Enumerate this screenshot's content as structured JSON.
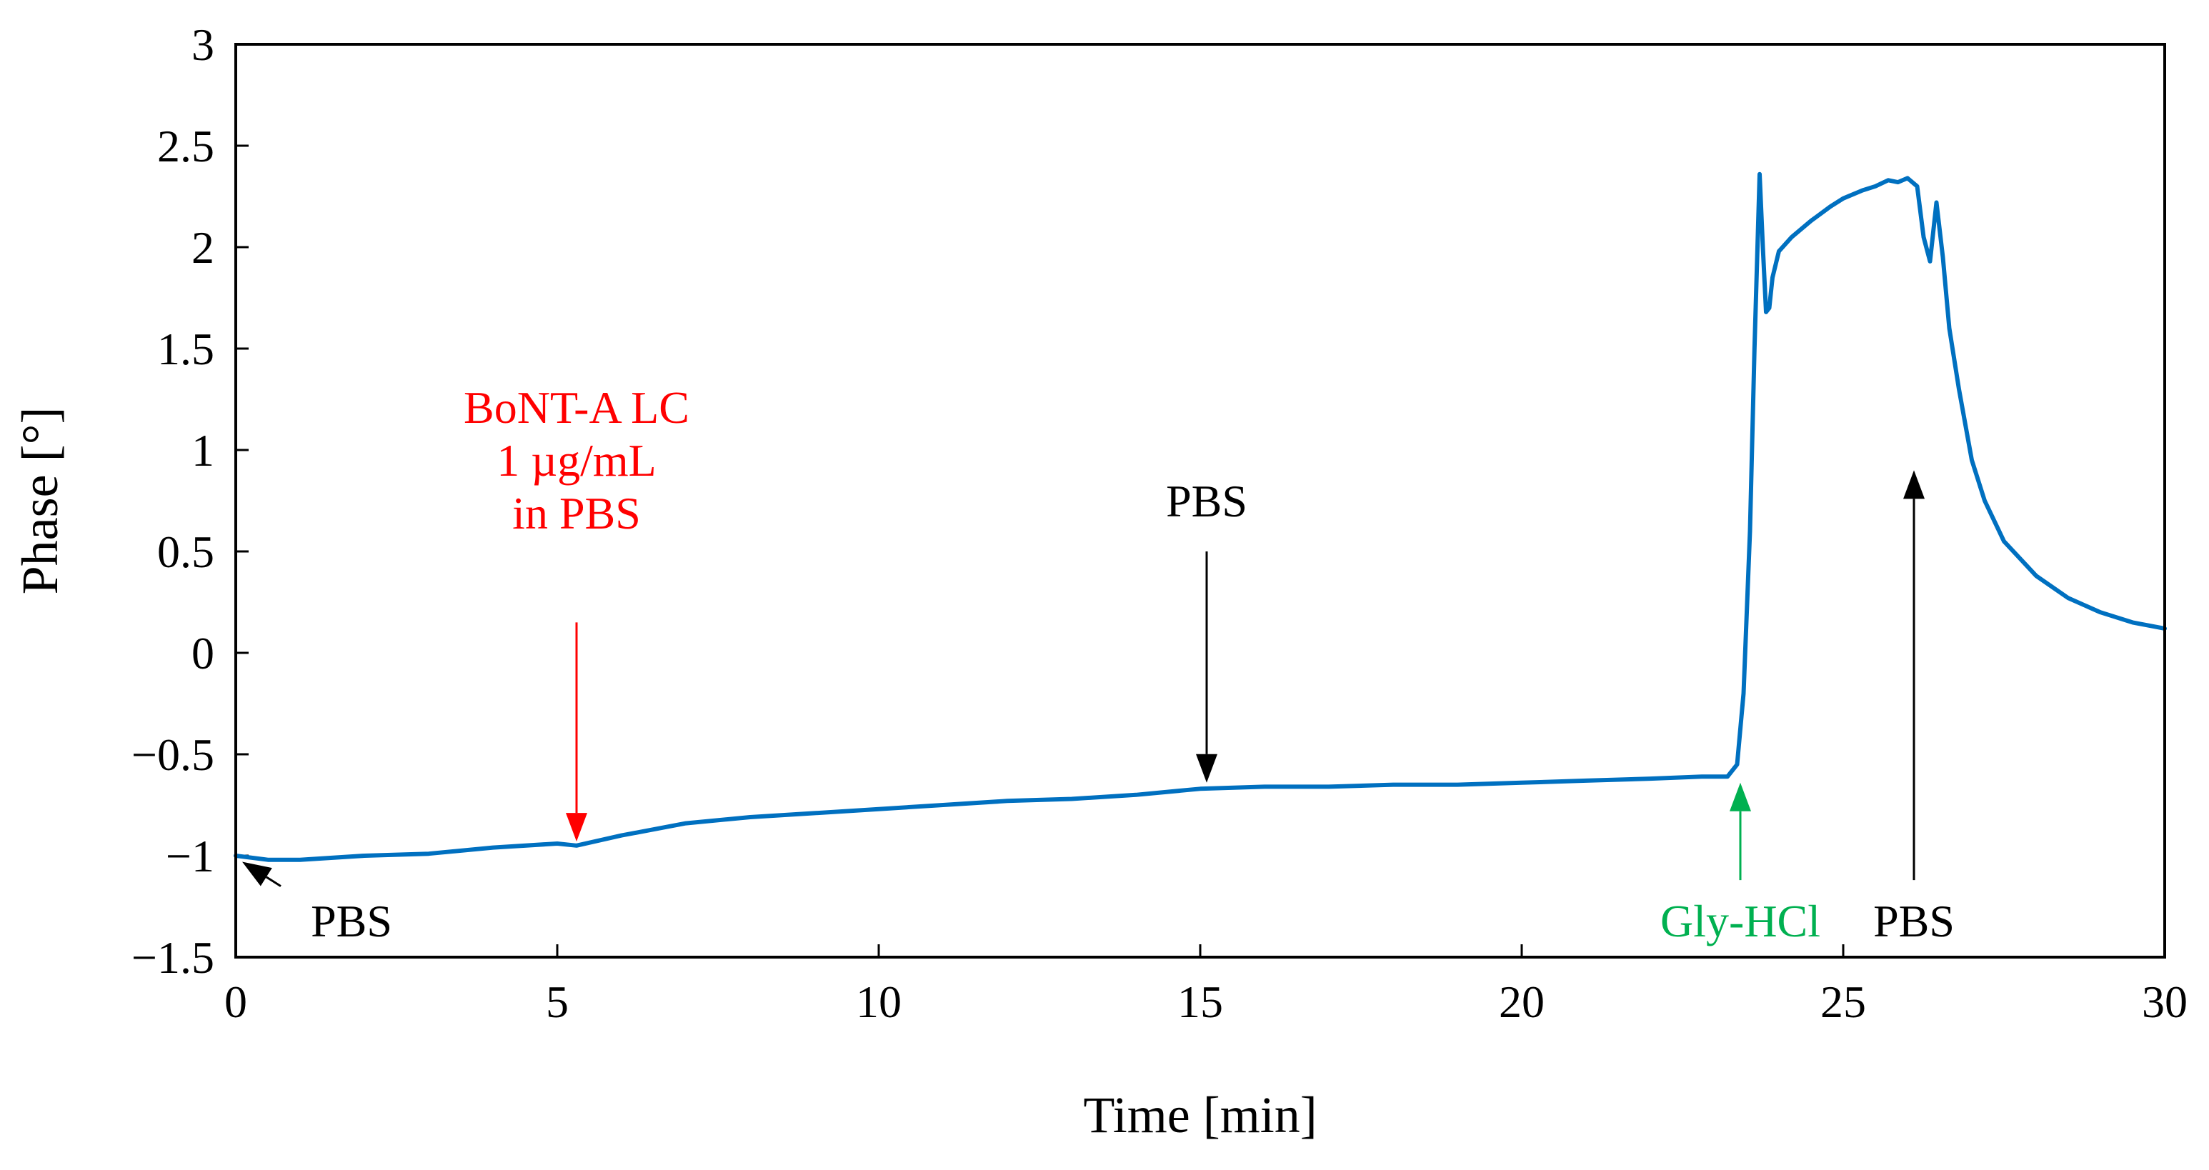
{
  "chart_data": {
    "type": "line",
    "title": "",
    "xlabel": "Time [min]",
    "ylabel": "Phase [°]",
    "xlim": [
      0,
      30
    ],
    "ylim": [
      -1.5,
      3
    ],
    "xticks": [
      0,
      5,
      10,
      15,
      20,
      25,
      30
    ],
    "yticks": [
      -1.5,
      -1,
      -0.5,
      0,
      0.5,
      1,
      1.5,
      2,
      2.5,
      3
    ],
    "xtick_labels": [
      "0",
      "5",
      "10",
      "15",
      "20",
      "25",
      "30"
    ],
    "ytick_labels": [
      "−1.5",
      "−1",
      "−0.5",
      "0",
      "0.5",
      "1",
      "1.5",
      "2",
      "2.5",
      "3"
    ],
    "grid": false,
    "series": [
      {
        "name": "Phase",
        "color": "#0070C0",
        "x": [
          0,
          0.5,
          1,
          2,
          3,
          4,
          5,
          5.3,
          6,
          7,
          8,
          9,
          10,
          11,
          12,
          13,
          14,
          15,
          16,
          17,
          18,
          19,
          20,
          21,
          22,
          22.8,
          23.2,
          23.35,
          23.45,
          23.55,
          23.62,
          23.7,
          23.75,
          23.8,
          23.85,
          23.9,
          24.0,
          24.2,
          24.5,
          24.8,
          25.0,
          25.3,
          25.5,
          25.7,
          25.85,
          26.0,
          26.15,
          26.25,
          26.35,
          26.45,
          26.55,
          26.65,
          26.8,
          27.0,
          27.2,
          27.5,
          28.0,
          28.5,
          29.0,
          29.5,
          30.0
        ],
        "y": [
          -1.0,
          -1.02,
          -1.02,
          -1.0,
          -0.99,
          -0.96,
          -0.94,
          -0.95,
          -0.9,
          -0.84,
          -0.81,
          -0.79,
          -0.77,
          -0.75,
          -0.73,
          -0.72,
          -0.7,
          -0.67,
          -0.66,
          -0.66,
          -0.65,
          -0.65,
          -0.64,
          -0.63,
          -0.62,
          -0.61,
          -0.61,
          -0.55,
          -0.2,
          0.6,
          1.5,
          2.36,
          2.0,
          1.68,
          1.7,
          1.85,
          1.98,
          2.05,
          2.13,
          2.2,
          2.24,
          2.28,
          2.3,
          2.33,
          2.32,
          2.34,
          2.3,
          2.05,
          1.93,
          2.22,
          1.95,
          1.6,
          1.3,
          0.95,
          0.75,
          0.55,
          0.38,
          0.27,
          0.2,
          0.15,
          0.12
        ]
      }
    ],
    "annotations": [
      {
        "id": "pbs-start",
        "lines": [
          "PBS"
        ],
        "color": "#000000",
        "arrow_from": [
          0.7,
          -1.15
        ],
        "arrow_to": [
          0.1,
          -1.03
        ],
        "text_at": [
          1.8,
          -1.32
        ]
      },
      {
        "id": "bont",
        "lines": [
          "BoNT-A LC",
          "1 µg/mL",
          "in PBS"
        ],
        "color": "#FF0000",
        "arrow_from": [
          5.3,
          0.15
        ],
        "arrow_to": [
          5.3,
          -0.93
        ],
        "text_at": [
          5.3,
          0.95
        ]
      },
      {
        "id": "pbs-wash",
        "lines": [
          "PBS"
        ],
        "color": "#000000",
        "arrow_from": [
          15.1,
          0.5
        ],
        "arrow_to": [
          15.1,
          -0.64
        ],
        "text_at": [
          15.1,
          0.75
        ]
      },
      {
        "id": "gly",
        "lines": [
          "Gly-HCl"
        ],
        "color": "#00B050",
        "arrow_from": [
          23.4,
          -1.12
        ],
        "arrow_to": [
          23.4,
          -0.64
        ],
        "text_at": [
          23.4,
          -1.32
        ]
      },
      {
        "id": "pbs-end",
        "lines": [
          "PBS"
        ],
        "color": "#000000",
        "arrow_from": [
          26.1,
          -1.12
        ],
        "arrow_to": [
          26.1,
          0.9
        ],
        "text_at": [
          26.1,
          -1.32
        ]
      }
    ]
  }
}
